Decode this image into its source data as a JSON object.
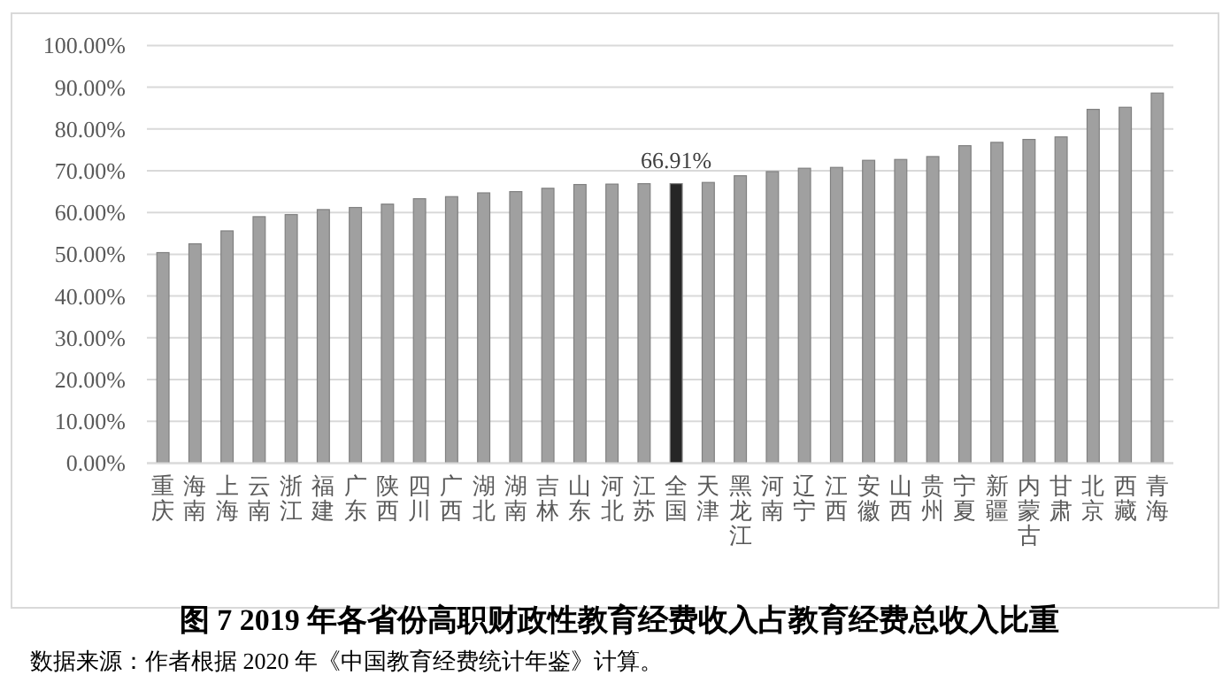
{
  "chart_data": {
    "type": "bar",
    "title": "图 7 2019 年各省份高职财政性教育经费收入占教育经费总收入比重",
    "annotations": [
      "数据来源：作者根据 2020 年《中国教育经费统计年鉴》计算。"
    ],
    "categories": [
      "重庆",
      "海南",
      "上海",
      "云南",
      "浙江",
      "福建",
      "广东",
      "陕西",
      "四川",
      "广西",
      "湖北",
      "湖南",
      "吉林",
      "山东",
      "河北",
      "江苏",
      "全国",
      "天津",
      "黑龙江",
      "河南",
      "辽宁",
      "江西",
      "安徽",
      "山西",
      "贵州",
      "宁夏",
      "新疆",
      "内蒙古",
      "甘肃",
      "北京",
      "西藏",
      "青海"
    ],
    "values": [
      50.4,
      52.5,
      55.6,
      59.0,
      59.5,
      60.7,
      61.2,
      62.0,
      63.3,
      63.8,
      64.7,
      65.0,
      65.8,
      66.7,
      66.8,
      66.9,
      66.91,
      67.2,
      68.8,
      69.8,
      70.6,
      70.8,
      72.5,
      72.7,
      73.4,
      76.0,
      76.8,
      77.5,
      78.1,
      84.7,
      85.2,
      88.6
    ],
    "colors": [
      "#a0a0a0",
      "#a0a0a0",
      "#a0a0a0",
      "#a0a0a0",
      "#a0a0a0",
      "#a0a0a0",
      "#a0a0a0",
      "#a0a0a0",
      "#a0a0a0",
      "#a0a0a0",
      "#a0a0a0",
      "#a0a0a0",
      "#a0a0a0",
      "#a0a0a0",
      "#a0a0a0",
      "#a0a0a0",
      "#262626",
      "#a0a0a0",
      "#a0a0a0",
      "#a0a0a0",
      "#a0a0a0",
      "#a0a0a0",
      "#a0a0a0",
      "#a0a0a0",
      "#a0a0a0",
      "#a0a0a0",
      "#a0a0a0",
      "#a0a0a0",
      "#a0a0a0",
      "#a0a0a0",
      "#a0a0a0",
      "#a0a0a0"
    ],
    "value_labels": [
      null,
      null,
      null,
      null,
      null,
      null,
      null,
      null,
      null,
      null,
      null,
      null,
      null,
      null,
      null,
      null,
      "66.91%",
      null,
      null,
      null,
      null,
      null,
      null,
      null,
      null,
      null,
      null,
      null,
      null,
      null,
      null,
      null
    ],
    "ylim": [
      0,
      100
    ],
    "yticks": [
      {
        "value": 0,
        "label": "0.00%"
      },
      {
        "value": 10,
        "label": "10.00%"
      },
      {
        "value": 20,
        "label": "20.00%"
      },
      {
        "value": 30,
        "label": "30.00%"
      },
      {
        "value": 40,
        "label": "40.00%"
      },
      {
        "value": 50,
        "label": "50.00%"
      },
      {
        "value": 60,
        "label": "60.00%"
      },
      {
        "value": 70,
        "label": "70.00%"
      },
      {
        "value": 80,
        "label": "80.00%"
      },
      {
        "value": 90,
        "label": "90.00%"
      },
      {
        "value": 100,
        "label": "100.00%"
      }
    ],
    "grid": "y"
  }
}
